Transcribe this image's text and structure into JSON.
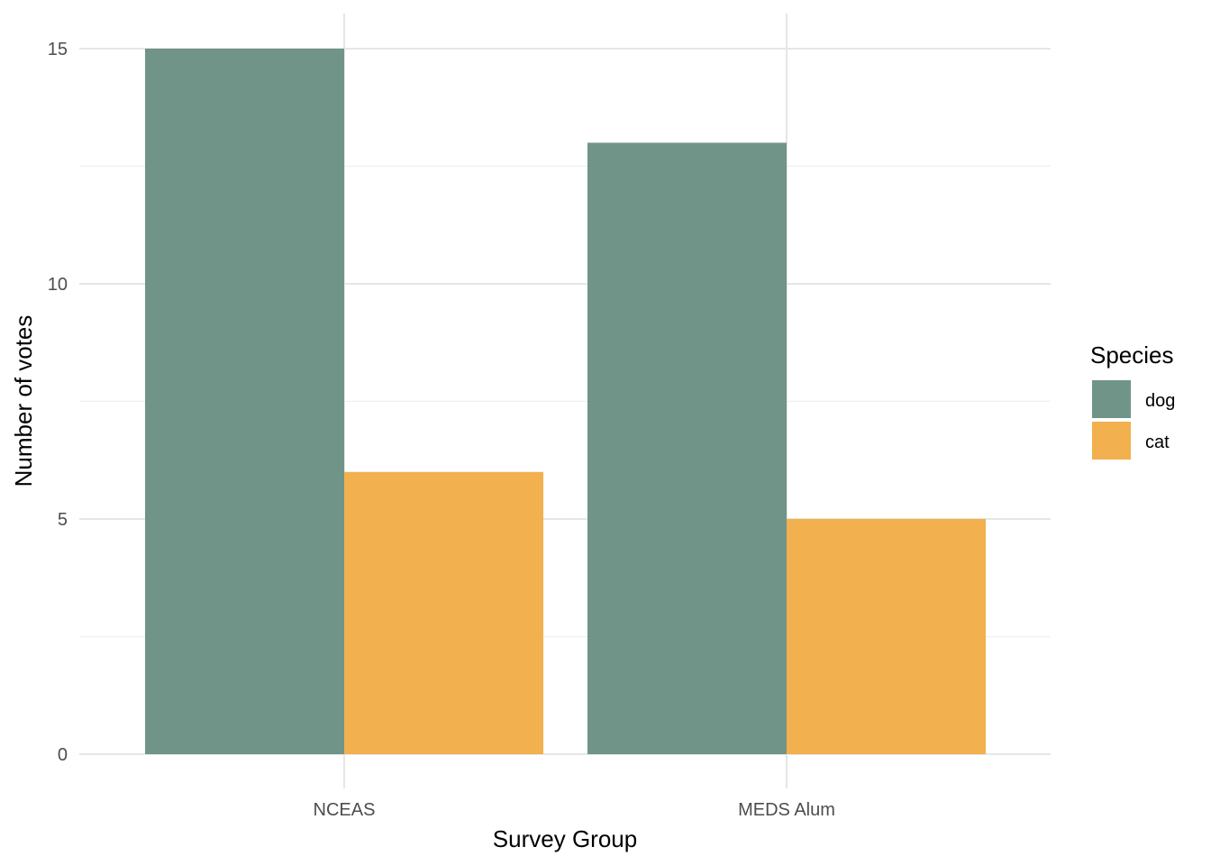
{
  "chart_data": {
    "type": "bar",
    "title": "",
    "xlabel": "Survey Group",
    "ylabel": "Number of votes",
    "categories": [
      "NCEAS",
      "MEDS Alum"
    ],
    "series": [
      {
        "name": "dog",
        "color": "#709488",
        "values": [
          15,
          13
        ]
      },
      {
        "name": "cat",
        "color": "#f2b04f",
        "values": [
          6,
          5
        ]
      }
    ],
    "ylim": [
      0,
      15.75
    ],
    "yticks": [
      0,
      5,
      10,
      15
    ],
    "y_minor_ticks": [
      2.5,
      7.5,
      12.5
    ],
    "grid": true,
    "legend": {
      "title": "Species",
      "position": "right"
    }
  }
}
